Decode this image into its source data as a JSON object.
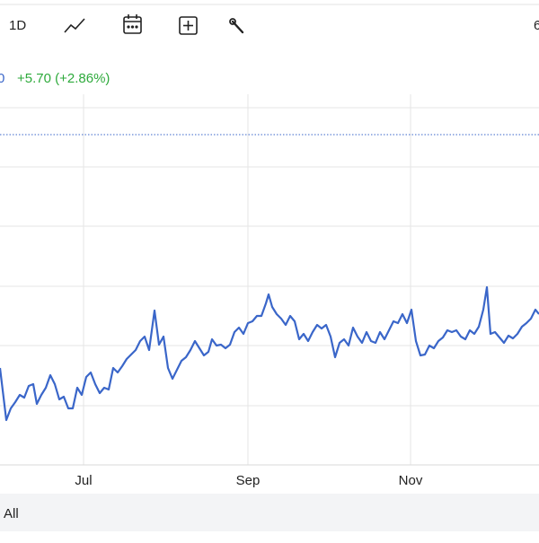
{
  "toolbar": {
    "interval": "1D",
    "edge": "6"
  },
  "header": {
    "price": "0",
    "change": "+5.70 (+2.86%)"
  },
  "range_bar": {
    "button": "All"
  },
  "chart_data": {
    "type": "line",
    "color": "#3a66c9",
    "grid": true,
    "xlim": [
      0,
      600
    ],
    "ylim": [
      0,
      413
    ],
    "xticks": [
      {
        "value": 93,
        "label": "Jul"
      },
      {
        "value": 276,
        "label": "Sep"
      },
      {
        "value": 457,
        "label": "Nov"
      }
    ],
    "yticks": [
      66,
      133,
      199,
      266,
      332,
      398
    ],
    "reference_line": 368,
    "x": [
      0,
      7,
      12,
      17,
      22,
      27,
      32,
      37,
      41,
      46,
      51,
      56,
      61,
      66,
      71,
      76,
      81,
      86,
      91,
      96,
      101,
      106,
      111,
      116,
      121,
      126,
      131,
      136,
      141,
      146,
      151,
      156,
      161,
      166,
      172,
      177,
      182,
      187,
      192,
      197,
      202,
      207,
      212,
      217,
      222,
      227,
      232,
      236,
      241,
      246,
      251,
      256,
      261,
      266,
      271,
      276,
      281,
      286,
      291,
      296,
      299,
      303,
      308,
      313,
      318,
      323,
      328,
      333,
      338,
      343,
      348,
      353,
      358,
      363,
      368,
      373,
      378,
      383,
      388,
      393,
      398,
      403,
      408,
      413,
      418,
      423,
      428,
      433,
      438,
      443,
      448,
      453,
      458,
      463,
      468,
      473,
      478,
      483,
      488,
      493,
      498,
      503,
      508,
      513,
      518,
      523,
      528,
      533,
      538,
      542,
      546,
      551,
      556,
      561,
      566,
      571,
      576,
      581,
      586,
      591,
      596,
      600
    ],
    "values": [
      108,
      50,
      63,
      70,
      78,
      75,
      88,
      90,
      68,
      78,
      86,
      100,
      90,
      73,
      76,
      63,
      63,
      86,
      78,
      98,
      103,
      90,
      80,
      86,
      84,
      108,
      103,
      110,
      118,
      123,
      128,
      138,
      143,
      128,
      172,
      134,
      143,
      108,
      96,
      106,
      116,
      120,
      128,
      138,
      130,
      122,
      126,
      140,
      133,
      134,
      130,
      134,
      148,
      153,
      146,
      158,
      160,
      166,
      166,
      180,
      190,
      176,
      168,
      163,
      156,
      166,
      160,
      140,
      146,
      138,
      148,
      156,
      152,
      156,
      143,
      120,
      136,
      140,
      133,
      153,
      143,
      136,
      148,
      138,
      136,
      148,
      140,
      150,
      160,
      158,
      168,
      158,
      173,
      138,
      122,
      123,
      133,
      130,
      138,
      142,
      150,
      148,
      150,
      143,
      140,
      150,
      146,
      154,
      173,
      198,
      146,
      148,
      142,
      136,
      144,
      141,
      146,
      154,
      158,
      163,
      173,
      168
    ]
  }
}
